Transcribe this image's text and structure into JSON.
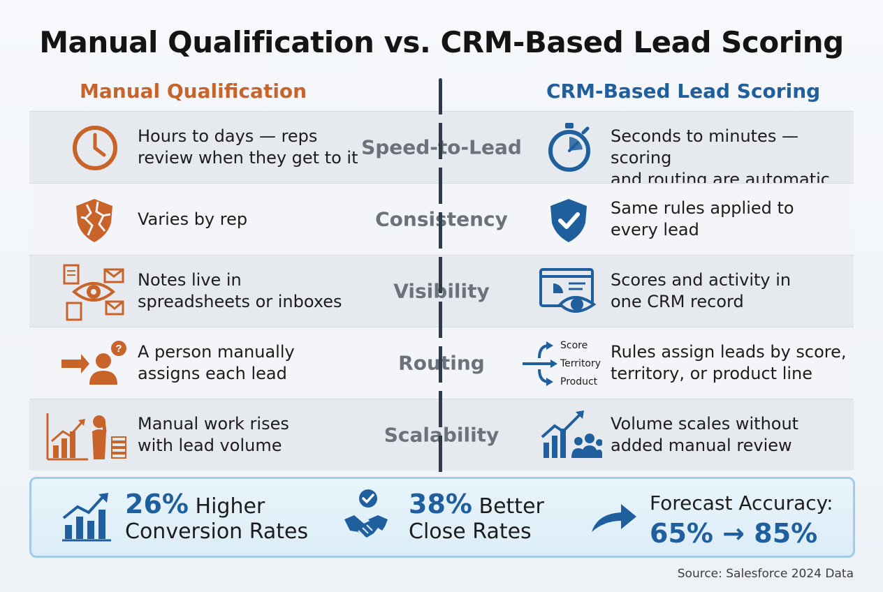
{
  "title": "Manual Qualification vs. CRM-Based Lead Scoring",
  "colors": {
    "manual": "#c8642a",
    "crm": "#1f5f9e",
    "category": "#6b727c"
  },
  "left_heading": "Manual Qualification",
  "right_heading": "CRM-Based Lead Scoring",
  "rows": [
    {
      "category": "Speed-to-Lead",
      "left_icon": "clock-icon",
      "left": "Hours to days — reps\nreview when they get to it",
      "right_icon": "stopwatch-icon",
      "right": "Seconds to minutes — scoring\nand routing are automatic"
    },
    {
      "category": "Consistency",
      "left_icon": "cracked-shield-icon",
      "left": "Varies by rep",
      "right_icon": "shield-check-icon",
      "right": "Same rules applied to\nevery lead"
    },
    {
      "category": "Visibility",
      "left_icon": "scattered-documents-eye-icon",
      "left": "Notes live in\nspreadsheets or inboxes",
      "right_icon": "dashboard-eye-icon",
      "right": "Scores and activity in\none CRM record"
    },
    {
      "category": "Routing",
      "left_icon": "person-question-icon",
      "left": "A person manually\nassigns each lead",
      "right_icon": "routing-arrows-icon",
      "right": "Rules assign leads by score,\nterritory, or product line",
      "routing_labels": [
        "Score",
        "Territory",
        "Product"
      ]
    },
    {
      "category": "Scalability",
      "left_icon": "stressed-person-chart-icon",
      "left": "Manual work rises\nwith lead volume",
      "right_icon": "growth-chart-team-icon",
      "right": "Volume scales without\nadded manual review"
    }
  ],
  "summary": {
    "stat1": {
      "icon": "bar-chart-up-icon",
      "value": "26%",
      "line1_rest": " Higher",
      "line2": "Conversion Rates"
    },
    "stat2": {
      "icon": "handshake-check-icon",
      "value": "38%",
      "line1_rest": " Better",
      "line2": "Close Rates"
    },
    "stat3": {
      "icon": "curved-arrow-icon",
      "label": "Forecast Accuracy:",
      "value": "65% → 85%"
    }
  },
  "source": "Source: Salesforce 2024 Data"
}
